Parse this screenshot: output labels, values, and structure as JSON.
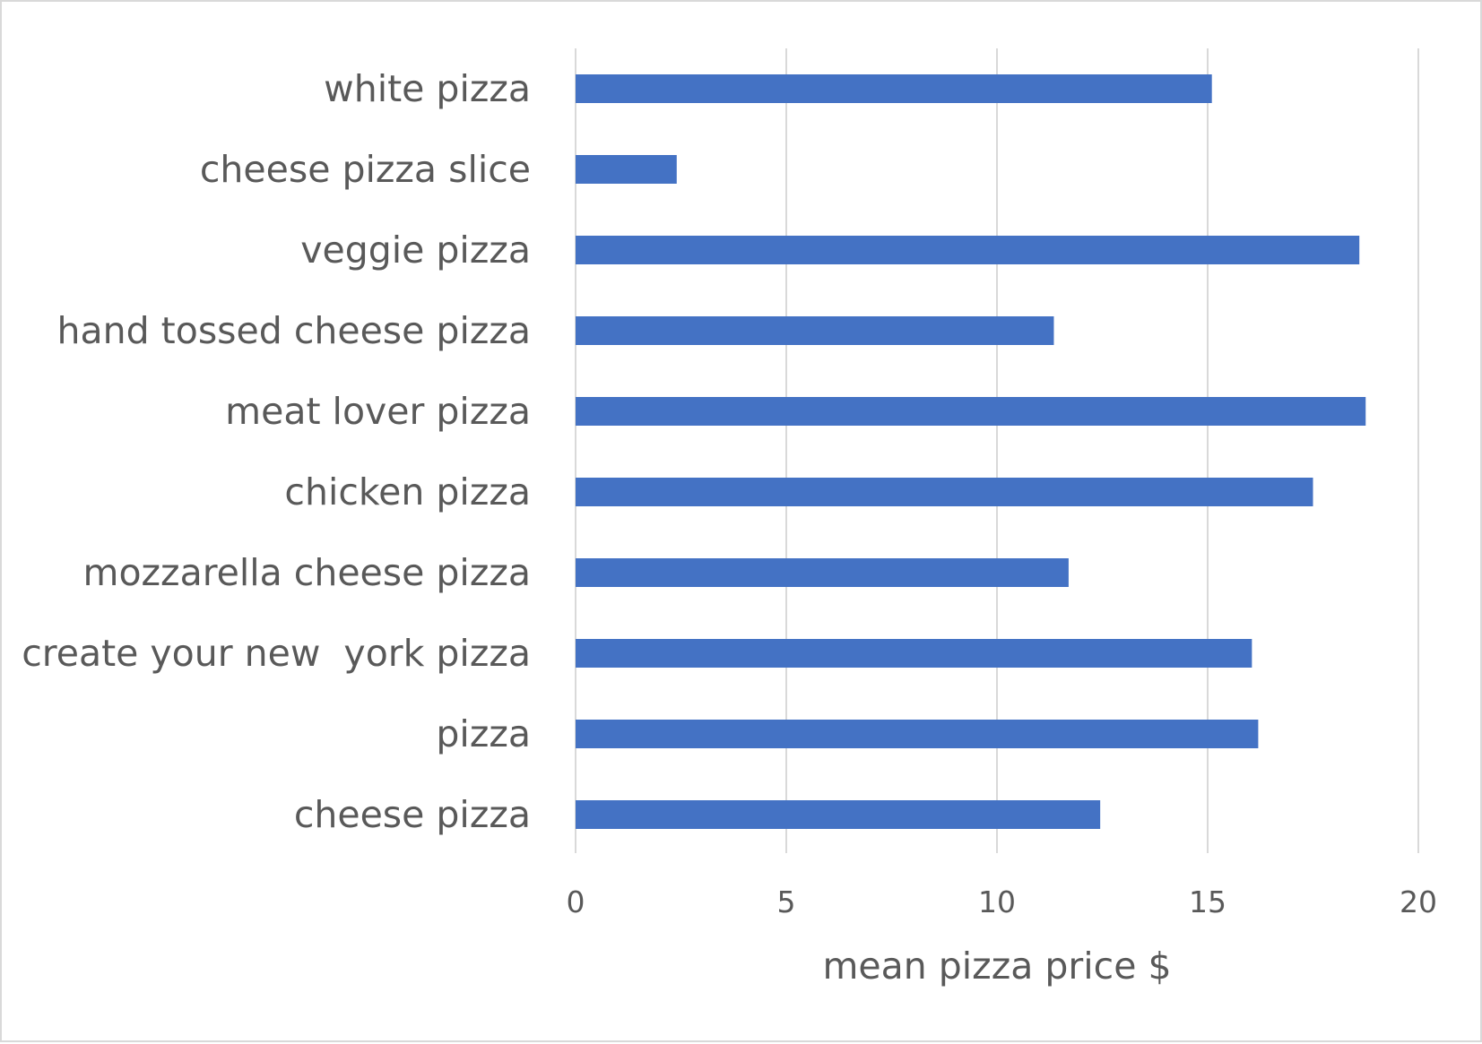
{
  "chart_data": {
    "type": "bar",
    "orientation": "horizontal",
    "title": "",
    "xlabel": "mean pizza price $",
    "ylabel": "",
    "categories": [
      "white pizza",
      "cheese pizza slice",
      "veggie pizza",
      "hand tossed cheese pizza",
      "meat lover pizza",
      "chicken pizza",
      "mozzarella cheese pizza",
      "create your new  york pizza",
      "pizza",
      "cheese pizza"
    ],
    "values": [
      15.1,
      2.4,
      18.6,
      11.35,
      18.75,
      17.5,
      11.7,
      16.05,
      16.2,
      12.45
    ],
    "xlim": [
      0,
      20
    ],
    "xticks": [
      0,
      5,
      10,
      15,
      20
    ],
    "xtick_labels": [
      "0",
      "5",
      "10",
      "15",
      "20"
    ],
    "grid": "vertical",
    "legend": "none",
    "bar_color": "#4472c4",
    "grid_color": "#d9d9d9",
    "text_color": "#595959"
  }
}
